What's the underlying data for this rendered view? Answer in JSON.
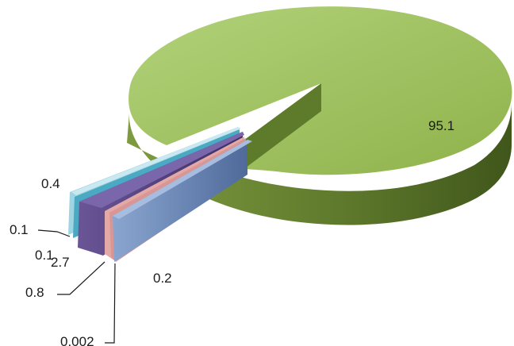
{
  "chart_data": {
    "type": "pie",
    "style": "3d-exploded",
    "slices": [
      {
        "label": "95.1",
        "value": 95.1,
        "color": "#9bbb59",
        "exploded": false
      },
      {
        "label": "0.2",
        "value": 0.2,
        "color": "#7f9dc8",
        "exploded": true
      },
      {
        "label": "0.002",
        "value": 0.002,
        "color": "#d99694",
        "exploded": true
      },
      {
        "label": "0.8",
        "value": 0.8,
        "color": "#e6b9b8",
        "exploded": true
      },
      {
        "label": "2.7",
        "value": 2.7,
        "color": "#5f4b8b",
        "exploded": true
      },
      {
        "label": "0.1",
        "value": 0.1,
        "color": "#4bacc6",
        "exploded": true
      },
      {
        "label": "0.1",
        "value": 0.1,
        "color": "#8dc6d6",
        "exploded": true
      },
      {
        "label": "0.4",
        "value": 0.4,
        "color": "#b7dde8",
        "exploded": true
      }
    ],
    "legend": "none",
    "title": ""
  }
}
